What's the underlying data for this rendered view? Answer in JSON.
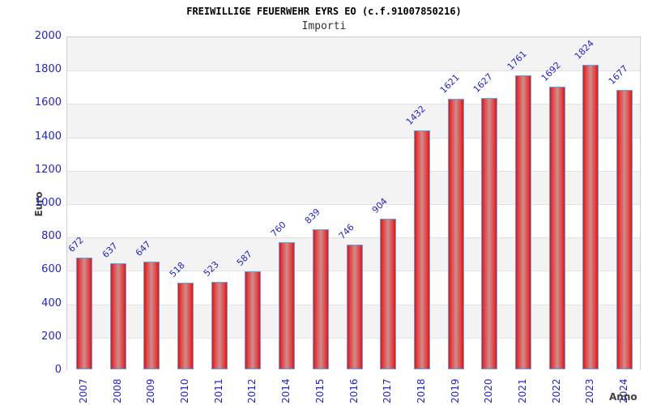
{
  "header": {
    "title": "FREIWILLIGE FEUERWEHR EYRS EO (c.f.91007850216)",
    "subtitle": "Importi"
  },
  "colors": {
    "tick_text": "#2323cd",
    "bar_fill_edge": "#e41414",
    "bar_fill_center": "#c89090",
    "bar_border": "#58a7e8",
    "band_gray": "#f3f3f3",
    "gridline": "#e2e2e2",
    "axis_title_text": "#3f3f3f"
  },
  "chart_data": {
    "type": "bar",
    "title": "FREIWILLIGE FEUERWEHR EYRS EO (c.f.91007850216)",
    "subtitle": "Importi",
    "xlabel": "Anno",
    "ylabel": "Euro",
    "categories": [
      "2007",
      "2008",
      "2009",
      "2010",
      "2011",
      "2012",
      "2014",
      "2015",
      "2016",
      "2017",
      "2018",
      "2019",
      "2020",
      "2021",
      "2022",
      "2023",
      "2024"
    ],
    "values": [
      672,
      637,
      647,
      518,
      523,
      587,
      760,
      839,
      746,
      904,
      1432,
      1621,
      1627,
      1761,
      1692,
      1824,
      1677
    ],
    "ylim": [
      0,
      2000
    ],
    "yticks": [
      0,
      200,
      400,
      600,
      800,
      1000,
      1200,
      1400,
      1600,
      1800,
      2000
    ],
    "grid": true,
    "alternating_bands": true,
    "legend": "none",
    "bar_labels_rotation_deg": 45,
    "xtick_rotation_deg": 90
  }
}
